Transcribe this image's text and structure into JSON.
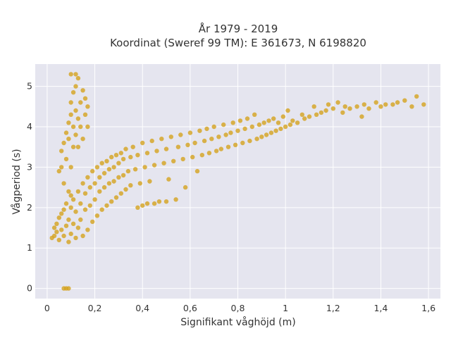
{
  "chart_data": {
    "type": "scatter",
    "title_line1": "År 1979 - 2019",
    "title_line2": "Koordinat (Sweref 99 TM): E 361673, N 6198820",
    "xlabel": "Signifikant våghöjd (m)",
    "ylabel": "Vågperiod (s)",
    "xlim": [
      -0.05,
      1.65
    ],
    "ylim": [
      -0.25,
      5.55
    ],
    "x_ticks": [
      0,
      0.2,
      0.4,
      0.6,
      0.8,
      1.0,
      1.2,
      1.4,
      1.6
    ],
    "x_tick_labels": [
      "0",
      "0,2",
      "0,4",
      "0,6",
      "0,8",
      "1",
      "1,2",
      "1,4",
      "1,6"
    ],
    "y_ticks": [
      0,
      1,
      2,
      3,
      4,
      5
    ],
    "y_tick_labels": [
      "0",
      "1",
      "2",
      "3",
      "4",
      "5"
    ],
    "grid": true,
    "marker_color": "#D4A21E",
    "plot_background": "#E5E5EF",
    "series": [
      {
        "points": [
          [
            0.07,
            0.0
          ],
          [
            0.08,
            0.0
          ],
          [
            0.09,
            0.0
          ],
          [
            0.02,
            1.25
          ],
          [
            0.03,
            1.3
          ],
          [
            0.03,
            1.5
          ],
          [
            0.04,
            1.4
          ],
          [
            0.04,
            1.6
          ],
          [
            0.05,
            1.2
          ],
          [
            0.05,
            1.75
          ],
          [
            0.06,
            1.45
          ],
          [
            0.06,
            1.85
          ],
          [
            0.07,
            1.3
          ],
          [
            0.07,
            1.95
          ],
          [
            0.08,
            1.55
          ],
          [
            0.08,
            2.1
          ],
          [
            0.09,
            1.15
          ],
          [
            0.09,
            1.7
          ],
          [
            0.1,
            1.35
          ],
          [
            0.1,
            2.0
          ],
          [
            0.1,
            2.3
          ],
          [
            0.11,
            1.6
          ],
          [
            0.11,
            2.2
          ],
          [
            0.12,
            1.25
          ],
          [
            0.12,
            1.9
          ],
          [
            0.13,
            1.5
          ],
          [
            0.13,
            2.4
          ],
          [
            0.14,
            1.7
          ],
          [
            0.14,
            2.1
          ],
          [
            0.15,
            1.3
          ],
          [
            0.15,
            2.6
          ],
          [
            0.16,
            1.95
          ],
          [
            0.16,
            2.35
          ],
          [
            0.17,
            1.45
          ],
          [
            0.17,
            2.75
          ],
          [
            0.18,
            2.05
          ],
          [
            0.18,
            2.5
          ],
          [
            0.19,
            1.65
          ],
          [
            0.19,
            2.9
          ],
          [
            0.2,
            2.2
          ],
          [
            0.2,
            2.6
          ],
          [
            0.21,
            1.8
          ],
          [
            0.21,
            3.0
          ],
          [
            0.22,
            2.4
          ],
          [
            0.22,
            2.75
          ],
          [
            0.23,
            1.95
          ],
          [
            0.23,
            3.1
          ],
          [
            0.24,
            2.5
          ],
          [
            0.24,
            2.85
          ],
          [
            0.25,
            2.05
          ],
          [
            0.25,
            3.15
          ],
          [
            0.26,
            2.6
          ],
          [
            0.26,
            2.95
          ],
          [
            0.27,
            2.15
          ],
          [
            0.27,
            3.25
          ],
          [
            0.28,
            2.65
          ],
          [
            0.28,
            3.0
          ],
          [
            0.29,
            2.25
          ],
          [
            0.29,
            3.3
          ],
          [
            0.3,
            2.75
          ],
          [
            0.3,
            3.1
          ],
          [
            0.31,
            2.35
          ],
          [
            0.31,
            3.35
          ],
          [
            0.32,
            2.8
          ],
          [
            0.32,
            3.2
          ],
          [
            0.33,
            2.45
          ],
          [
            0.33,
            3.45
          ],
          [
            0.34,
            2.9
          ],
          [
            0.35,
            3.25
          ],
          [
            0.35,
            2.55
          ],
          [
            0.36,
            3.5
          ],
          [
            0.37,
            2.95
          ],
          [
            0.38,
            3.3
          ],
          [
            0.38,
            2.0
          ],
          [
            0.39,
            2.6
          ],
          [
            0.4,
            3.6
          ],
          [
            0.4,
            2.05
          ],
          [
            0.41,
            3.0
          ],
          [
            0.42,
            3.35
          ],
          [
            0.42,
            2.1
          ],
          [
            0.43,
            2.65
          ],
          [
            0.44,
            3.65
          ],
          [
            0.45,
            2.1
          ],
          [
            0.45,
            3.05
          ],
          [
            0.46,
            3.4
          ],
          [
            0.47,
            2.15
          ],
          [
            0.48,
            3.7
          ],
          [
            0.49,
            3.1
          ],
          [
            0.5,
            3.45
          ],
          [
            0.5,
            2.15
          ],
          [
            0.51,
            2.7
          ],
          [
            0.52,
            3.75
          ],
          [
            0.53,
            3.15
          ],
          [
            0.54,
            2.2
          ],
          [
            0.55,
            3.5
          ],
          [
            0.56,
            3.8
          ],
          [
            0.57,
            3.2
          ],
          [
            0.58,
            2.5
          ],
          [
            0.59,
            3.55
          ],
          [
            0.6,
            3.85
          ],
          [
            0.61,
            3.25
          ],
          [
            0.62,
            3.6
          ],
          [
            0.63,
            2.9
          ],
          [
            0.64,
            3.9
          ],
          [
            0.65,
            3.3
          ],
          [
            0.66,
            3.65
          ],
          [
            0.67,
            3.95
          ],
          [
            0.68,
            3.35
          ],
          [
            0.69,
            3.7
          ],
          [
            0.7,
            4.0
          ],
          [
            0.71,
            3.4
          ],
          [
            0.72,
            3.75
          ],
          [
            0.73,
            3.45
          ],
          [
            0.74,
            4.05
          ],
          [
            0.75,
            3.8
          ],
          [
            0.76,
            3.5
          ],
          [
            0.77,
            3.85
          ],
          [
            0.78,
            4.1
          ],
          [
            0.79,
            3.55
          ],
          [
            0.8,
            3.9
          ],
          [
            0.81,
            4.15
          ],
          [
            0.82,
            3.6
          ],
          [
            0.83,
            3.95
          ],
          [
            0.84,
            4.2
          ],
          [
            0.85,
            3.65
          ],
          [
            0.86,
            4.0
          ],
          [
            0.87,
            4.3
          ],
          [
            0.88,
            3.7
          ],
          [
            0.89,
            4.05
          ],
          [
            0.9,
            3.75
          ],
          [
            0.91,
            4.1
          ],
          [
            0.92,
            3.8
          ],
          [
            0.93,
            4.15
          ],
          [
            0.94,
            3.85
          ],
          [
            0.95,
            4.2
          ],
          [
            0.96,
            3.9
          ],
          [
            0.97,
            4.1
          ],
          [
            0.98,
            3.95
          ],
          [
            0.99,
            4.25
          ],
          [
            1.0,
            4.0
          ],
          [
            1.01,
            4.4
          ],
          [
            1.02,
            4.05
          ],
          [
            1.03,
            4.15
          ],
          [
            1.05,
            4.1
          ],
          [
            1.07,
            4.3
          ],
          [
            1.08,
            4.2
          ],
          [
            1.1,
            4.25
          ],
          [
            1.12,
            4.5
          ],
          [
            1.13,
            4.3
          ],
          [
            1.15,
            4.35
          ],
          [
            1.17,
            4.4
          ],
          [
            1.18,
            4.55
          ],
          [
            1.2,
            4.45
          ],
          [
            1.22,
            4.6
          ],
          [
            1.24,
            4.35
          ],
          [
            1.25,
            4.5
          ],
          [
            1.27,
            4.45
          ],
          [
            1.3,
            4.5
          ],
          [
            1.32,
            4.25
          ],
          [
            1.33,
            4.55
          ],
          [
            1.35,
            4.45
          ],
          [
            1.38,
            4.6
          ],
          [
            1.4,
            4.5
          ],
          [
            1.42,
            4.55
          ],
          [
            1.45,
            4.55
          ],
          [
            1.47,
            4.6
          ],
          [
            1.5,
            4.65
          ],
          [
            1.53,
            4.5
          ],
          [
            1.55,
            4.75
          ],
          [
            1.58,
            4.55
          ],
          [
            0.06,
            3.0
          ],
          [
            0.06,
            3.4
          ],
          [
            0.07,
            3.6
          ],
          [
            0.07,
            2.6
          ],
          [
            0.08,
            3.85
          ],
          [
            0.08,
            3.2
          ],
          [
            0.09,
            4.1
          ],
          [
            0.09,
            3.7
          ],
          [
            0.1,
            4.3
          ],
          [
            0.1,
            3.0
          ],
          [
            0.1,
            4.6
          ],
          [
            0.11,
            3.5
          ],
          [
            0.11,
            4.0
          ],
          [
            0.11,
            4.85
          ],
          [
            0.12,
            4.4
          ],
          [
            0.12,
            3.8
          ],
          [
            0.12,
            5.0
          ],
          [
            0.13,
            4.2
          ],
          [
            0.13,
            3.5
          ],
          [
            0.13,
            5.2
          ],
          [
            0.14,
            4.6
          ],
          [
            0.14,
            4.0
          ],
          [
            0.15,
            4.9
          ],
          [
            0.15,
            3.7
          ],
          [
            0.16,
            4.3
          ],
          [
            0.16,
            4.7
          ],
          [
            0.17,
            4.0
          ],
          [
            0.17,
            4.5
          ],
          [
            0.1,
            5.3
          ],
          [
            0.12,
            5.3
          ],
          [
            0.09,
            2.4
          ],
          [
            0.05,
            2.9
          ]
        ]
      }
    ]
  }
}
